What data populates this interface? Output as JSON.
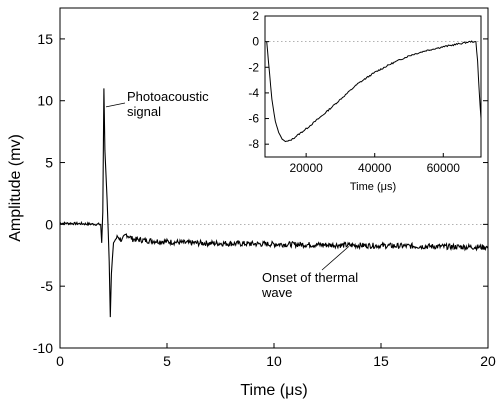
{
  "chart_data": [
    {
      "type": "line",
      "title": "",
      "xlabel": "Time (μs)",
      "ylabel": "Amplitude (mv)",
      "xlim": [
        0,
        20
      ],
      "ylim": [
        -10,
        17.5
      ],
      "x_ticks": [
        0,
        5,
        10,
        15,
        20
      ],
      "y_ticks": [
        -10,
        -5,
        0,
        5,
        10,
        15
      ],
      "x_tick_labels": [
        "0",
        "5",
        "10",
        "15",
        "20"
      ],
      "y_tick_labels": [
        "-10",
        "-5",
        "0",
        "5",
        "10",
        "15"
      ],
      "reference_line": {
        "y": 0,
        "style": "dotted"
      },
      "series": [
        {
          "x": [
            0.0,
            1.0,
            1.9,
            1.95,
            2.0,
            2.05,
            2.1,
            2.2,
            2.3,
            2.35,
            2.4,
            2.5,
            2.6,
            2.7,
            2.9,
            3.1,
            3.4,
            4.0,
            5.0,
            6.0,
            8.0,
            10.0,
            12.0,
            14.0,
            16.0,
            18.0,
            20.0
          ],
          "y": [
            0.1,
            0.05,
            0.0,
            -1.5,
            1.0,
            11.0,
            6.0,
            2.0,
            -3.0,
            -7.5,
            -4.0,
            -1.5,
            -1.2,
            -1.0,
            -1.3,
            -0.8,
            -1.2,
            -1.3,
            -1.4,
            -1.5,
            -1.55,
            -1.6,
            -1.65,
            -1.7,
            -1.75,
            -1.8,
            -1.85
          ],
          "color": "#000000"
        }
      ],
      "annotations": [
        {
          "lines": [
            "Photoacoustic",
            "signal"
          ]
        },
        {
          "lines": [
            "Onset of thermal",
            "wave"
          ]
        }
      ]
    },
    {
      "type": "line",
      "title": "",
      "xlabel": "Time (μs)",
      "ylabel": "",
      "xlim": [
        8000,
        71000
      ],
      "ylim": [
        -9,
        2
      ],
      "x_ticks": [
        20000,
        40000,
        60000
      ],
      "y_ticks": [
        -8,
        -6,
        -4,
        -2,
        0,
        2
      ],
      "x_tick_labels": [
        "20000",
        "40000",
        "60000"
      ],
      "y_tick_labels": [
        "-8",
        "-6",
        "-4",
        "-2",
        "0",
        "2"
      ],
      "reference_line": {
        "y": 0,
        "style": "dotted"
      },
      "series": [
        {
          "x": [
            8500,
            9000,
            10000,
            11000,
            12000,
            13000,
            14000,
            15000,
            16000,
            18000,
            20000,
            25000,
            30000,
            35000,
            40000,
            45000,
            50000,
            55000,
            60000,
            65000,
            68000,
            69500,
            70000,
            70500,
            71000
          ],
          "y": [
            0.0,
            -1.5,
            -4.5,
            -6.2,
            -7.1,
            -7.6,
            -7.8,
            -7.75,
            -7.6,
            -7.2,
            -6.8,
            -5.7,
            -4.5,
            -3.3,
            -2.4,
            -1.7,
            -1.1,
            -0.7,
            -0.4,
            -0.15,
            0.0,
            0.0,
            -1.5,
            -4.0,
            -6.0
          ],
          "color": "#000000"
        }
      ]
    }
  ]
}
